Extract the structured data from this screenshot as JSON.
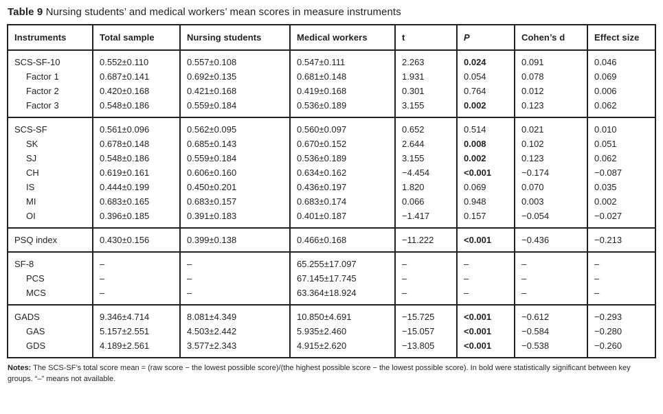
{
  "title": {
    "label": "Table 9",
    "text": "Nursing students’ and medical workers’ mean scores in measure instruments"
  },
  "table": {
    "columns": [
      "Instruments",
      "Total sample",
      "Nursing students",
      "Medical workers",
      "t",
      "P",
      "Cohen’s d",
      "Effect size"
    ],
    "groups": [
      {
        "rows": [
          {
            "label": "SCS-SF-10",
            "indent": false,
            "values": [
              "0.552±0.110",
              "0.557±0.108",
              "0.547±0.111",
              "2.263",
              "0.024",
              "0.091",
              "0.046"
            ],
            "bold": [
              4
            ]
          },
          {
            "label": "Factor 1",
            "indent": true,
            "values": [
              "0.687±0.141",
              "0.692±0.135",
              "0.681±0.148",
              "1.931",
              "0.054",
              "0.078",
              "0.069"
            ],
            "bold": []
          },
          {
            "label": "Factor 2",
            "indent": true,
            "values": [
              "0.420±0.168",
              "0.421±0.168",
              "0.419±0.168",
              "0.301",
              "0.764",
              "0.012",
              "0.006"
            ],
            "bold": []
          },
          {
            "label": "Factor 3",
            "indent": true,
            "values": [
              "0.548±0.186",
              "0.559±0.184",
              "0.536±0.189",
              "3.155",
              "0.002",
              "0.123",
              "0.062"
            ],
            "bold": [
              4
            ]
          }
        ]
      },
      {
        "rows": [
          {
            "label": "SCS-SF",
            "indent": false,
            "values": [
              "0.561±0.096",
              "0.562±0.095",
              "0.560±0.097",
              "0.652",
              "0.514",
              "0.021",
              "0.010"
            ],
            "bold": []
          },
          {
            "label": "SK",
            "indent": true,
            "values": [
              "0.678±0.148",
              "0.685±0.143",
              "0.670±0.152",
              "2.644",
              "0.008",
              "0.102",
              "0.051"
            ],
            "bold": [
              4
            ]
          },
          {
            "label": "SJ",
            "indent": true,
            "values": [
              "0.548±0.186",
              "0.559±0.184",
              "0.536±0.189",
              "3.155",
              "0.002",
              "0.123",
              "0.062"
            ],
            "bold": [
              4
            ]
          },
          {
            "label": "CH",
            "indent": true,
            "values": [
              "0.619±0.161",
              "0.606±0.160",
              "0.634±0.162",
              "−4.454",
              "<0.001",
              "−0.174",
              "−0.087"
            ],
            "bold": [
              4
            ]
          },
          {
            "label": "IS",
            "indent": true,
            "values": [
              "0.444±0.199",
              "0.450±0.201",
              "0.436±0.197",
              "1.820",
              "0.069",
              "0.070",
              "0.035"
            ],
            "bold": []
          },
          {
            "label": "MI",
            "indent": true,
            "values": [
              "0.683±0.165",
              "0.683±0.157",
              "0.683±0.174",
              "0.066",
              "0.948",
              "0.003",
              "0.002"
            ],
            "bold": []
          },
          {
            "label": "OI",
            "indent": true,
            "values": [
              "0.396±0.185",
              "0.391±0.183",
              "0.401±0.187",
              "−1.417",
              "0.157",
              "−0.054",
              "−0.027"
            ],
            "bold": []
          }
        ]
      },
      {
        "rows": [
          {
            "label": "PSQ index",
            "indent": false,
            "values": [
              "0.430±0.156",
              "0.399±0.138",
              "0.466±0.168",
              "−11.222",
              "<0.001",
              "−0.436",
              "−0.213"
            ],
            "bold": [
              4
            ]
          }
        ]
      },
      {
        "rows": [
          {
            "label": "SF-8",
            "indent": false,
            "values": [
              "–",
              "–",
              "65.255±17.097",
              "–",
              "–",
              "–",
              "–"
            ],
            "bold": []
          },
          {
            "label": "PCS",
            "indent": true,
            "values": [
              "–",
              "–",
              "67.145±17.745",
              "–",
              "–",
              "–",
              "–"
            ],
            "bold": []
          },
          {
            "label": "MCS",
            "indent": true,
            "values": [
              "–",
              "–",
              "63.364±18.924",
              "–",
              "–",
              "–",
              "–"
            ],
            "bold": []
          }
        ]
      },
      {
        "rows": [
          {
            "label": "GADS",
            "indent": false,
            "values": [
              "9.346±4.714",
              "8.081±4.349",
              "10.850±4.691",
              "−15.725",
              "<0.001",
              "−0.612",
              "−0.293"
            ],
            "bold": [
              4
            ]
          },
          {
            "label": "GAS",
            "indent": true,
            "values": [
              "5.157±2.551",
              "4.503±2.442",
              "5.935±2.460",
              "−15.057",
              "<0.001",
              "−0.584",
              "−0.280"
            ],
            "bold": [
              4
            ]
          },
          {
            "label": "GDS",
            "indent": true,
            "values": [
              "4.189±2.561",
              "3.577±2.343",
              "4.915±2.620",
              "−13.805",
              "<0.001",
              "−0.538",
              "−0.260"
            ],
            "bold": [
              4
            ]
          }
        ]
      }
    ]
  },
  "notes": {
    "label": "Notes:",
    "text": "The SCS-SF’s total score mean = (raw score − the lowest possible score)/(the highest possible score − the lowest possible score). In bold were statistically significant between key groups. “–” means not available."
  }
}
